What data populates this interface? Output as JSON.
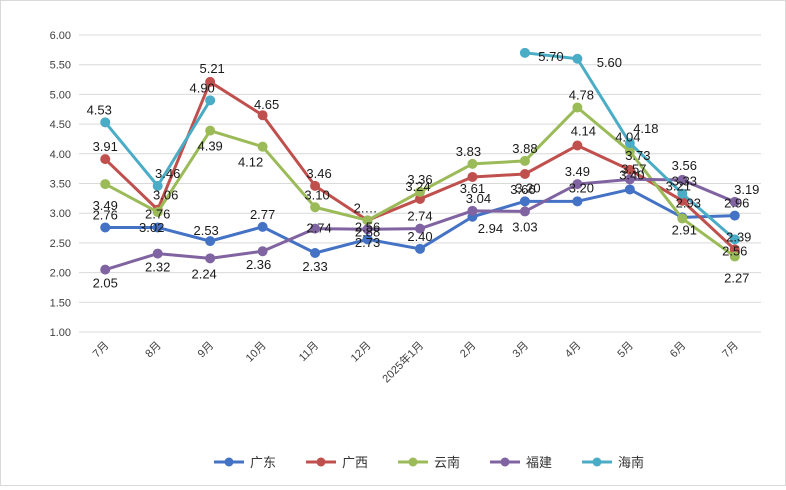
{
  "chart_data": {
    "type": "line",
    "categories": [
      "7月",
      "8月",
      "9月",
      "10月",
      "11月",
      "12月",
      "2025年1月",
      "2月",
      "3月",
      "4月",
      "5月",
      "6月",
      "7月"
    ],
    "ylim": [
      1.0,
      6.0
    ],
    "yticks": [
      "1.00",
      "1.50",
      "2.00",
      "2.50",
      "3.00",
      "3.50",
      "4.00",
      "4.50",
      "5.00",
      "5.50",
      "6.00"
    ],
    "grid": true,
    "legend_position": "bottom",
    "series": [
      {
        "name": "广东",
        "color": "#4472C4",
        "values": [
          2.76,
          2.76,
          2.53,
          2.77,
          2.33,
          2.56,
          2.4,
          2.94,
          3.2,
          3.2,
          3.4,
          2.93,
          2.96
        ],
        "labels": [
          "2.76",
          "2.76",
          "2.53",
          "2.77",
          "2.33",
          "2.56",
          "2.40",
          "2.94",
          "3.20",
          "3.20",
          "3.40",
          "2.93",
          "2.96"
        ]
      },
      {
        "name": "广西",
        "color": "#C0504D",
        "values": [
          3.91,
          3.06,
          5.21,
          4.65,
          3.46,
          2.88,
          3.24,
          3.61,
          3.66,
          4.14,
          3.73,
          3.21,
          2.39
        ],
        "labels": [
          "3.91",
          "3.06",
          "5.21",
          "4.65",
          "3.46",
          "2.88",
          "3.24",
          "3.61",
          "3.66",
          "4.14",
          "3.73",
          "3.21",
          "2.39"
        ]
      },
      {
        "name": "云南",
        "color": "#9BBB59",
        "values": [
          3.49,
          3.02,
          4.39,
          4.12,
          3.1,
          2.88,
          3.36,
          3.83,
          3.88,
          4.78,
          4.04,
          2.91,
          2.27
        ],
        "labels": [
          "3.49",
          "3.02",
          "4.39",
          "4.12",
          "3.10",
          "2.…",
          "3.36",
          "3.83",
          "3.88",
          "4.78",
          "4.04",
          "2.91",
          "2.27"
        ]
      },
      {
        "name": "福建",
        "color": "#8064A2",
        "values": [
          2.05,
          2.32,
          2.24,
          2.36,
          2.74,
          2.73,
          2.74,
          3.04,
          3.03,
          3.49,
          3.57,
          3.56,
          3.19
        ],
        "labels": [
          "2.05",
          "2.32",
          "2.24",
          "2.36",
          "2.74",
          "2.73",
          "2.74",
          "3.04",
          "3.03",
          "3.49",
          "3.57",
          "3.56",
          "3.19"
        ]
      },
      {
        "name": "海南",
        "color": "#4BACC6",
        "values": [
          4.53,
          3.46,
          4.9,
          null,
          null,
          null,
          null,
          null,
          5.7,
          5.6,
          4.18,
          3.33,
          2.56
        ],
        "labels": [
          "4.53",
          "3.46",
          "4.90",
          "",
          "",
          "",
          "",
          "",
          "5.70",
          "5.60",
          "4.18",
          "3.33",
          "2.56"
        ]
      }
    ]
  }
}
